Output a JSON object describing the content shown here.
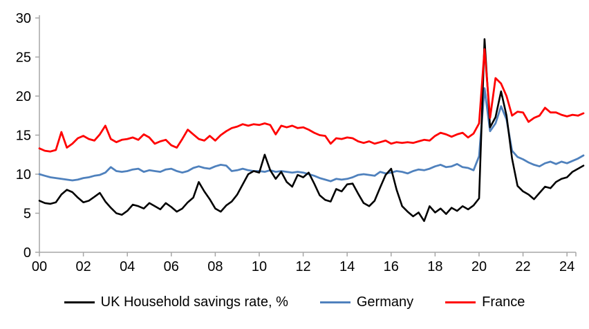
{
  "page": {
    "background": "#FFFFFF"
  },
  "chart_data": {
    "type": "line",
    "title": "",
    "xlabel": "",
    "ylabel": "",
    "grid": false,
    "legend_position": "bottom",
    "axis_color": "#A6A6A6",
    "text_color": "#000000",
    "xlim": [
      2000,
      2024.75
    ],
    "ylim": [
      0,
      30
    ],
    "x_step": 0.25,
    "x_unit": "quarterly, year 2000 Q1 to 2024 Q4",
    "yticks": [
      0,
      5,
      10,
      15,
      20,
      25,
      30
    ],
    "xticks": [
      {
        "year": 2000,
        "label": "00"
      },
      {
        "year": 2002,
        "label": "02"
      },
      {
        "year": 2004,
        "label": "04"
      },
      {
        "year": 2006,
        "label": "06"
      },
      {
        "year": 2008,
        "label": "08"
      },
      {
        "year": 2010,
        "label": "10"
      },
      {
        "year": 2012,
        "label": "12"
      },
      {
        "year": 2014,
        "label": "14"
      },
      {
        "year": 2016,
        "label": "16"
      },
      {
        "year": 2018,
        "label": "18"
      },
      {
        "year": 2020,
        "label": "20"
      },
      {
        "year": 2022,
        "label": "22"
      },
      {
        "year": 2024,
        "label": "24"
      }
    ],
    "draw_order": [
      1,
      0,
      2
    ],
    "series": [
      {
        "name": "UK Household savings rate, %",
        "color": "#000000",
        "width": 2.6,
        "values": [
          6.6,
          6.3,
          6.2,
          6.4,
          7.4,
          8.0,
          7.7,
          7.0,
          6.4,
          6.6,
          7.1,
          7.6,
          6.5,
          5.7,
          5.0,
          4.8,
          5.3,
          6.1,
          5.9,
          5.6,
          6.3,
          5.9,
          5.5,
          6.3,
          5.8,
          5.2,
          5.6,
          6.4,
          7.0,
          9.0,
          7.8,
          6.8,
          5.6,
          5.2,
          6.0,
          6.5,
          7.4,
          8.7,
          10.0,
          10.4,
          10.2,
          12.5,
          10.5,
          9.4,
          10.3,
          9.0,
          8.4,
          9.9,
          9.6,
          10.2,
          8.8,
          7.3,
          6.7,
          6.5,
          8.1,
          7.8,
          8.7,
          8.8,
          7.5,
          6.3,
          5.9,
          6.6,
          8.3,
          9.9,
          10.7,
          8.0,
          5.9,
          5.2,
          4.6,
          5.1,
          4.0,
          5.9,
          5.1,
          5.6,
          4.9,
          5.7,
          5.3,
          5.9,
          5.5,
          6.0,
          6.9,
          27.3,
          16.0,
          17.3,
          20.6,
          17.5,
          12.0,
          8.5,
          7.8,
          7.4,
          6.8,
          7.6,
          8.4,
          8.2,
          9.0,
          9.4,
          9.6,
          10.3,
          10.7,
          11.1
        ]
      },
      {
        "name": "Germany",
        "color": "#4F81BD",
        "width": 2.8,
        "values": [
          10.0,
          9.8,
          9.6,
          9.5,
          9.4,
          9.3,
          9.2,
          9.3,
          9.5,
          9.6,
          9.8,
          9.9,
          10.2,
          10.9,
          10.4,
          10.3,
          10.4,
          10.6,
          10.7,
          10.3,
          10.5,
          10.4,
          10.3,
          10.6,
          10.7,
          10.4,
          10.2,
          10.4,
          10.8,
          11.0,
          10.8,
          10.7,
          11.0,
          11.2,
          11.1,
          10.4,
          10.5,
          10.7,
          10.5,
          10.4,
          10.4,
          10.3,
          10.5,
          10.3,
          10.4,
          10.3,
          10.2,
          10.3,
          10.2,
          10.0,
          9.8,
          9.5,
          9.3,
          9.1,
          9.4,
          9.3,
          9.4,
          9.6,
          9.9,
          10.0,
          9.9,
          9.8,
          10.3,
          10.1,
          10.2,
          10.4,
          10.3,
          10.1,
          10.4,
          10.6,
          10.5,
          10.7,
          11.0,
          11.2,
          10.9,
          11.0,
          11.3,
          10.9,
          10.8,
          10.5,
          12.3,
          21.0,
          15.5,
          16.5,
          18.7,
          17.0,
          13.0,
          12.2,
          11.9,
          11.5,
          11.2,
          11.0,
          11.4,
          11.6,
          11.3,
          11.6,
          11.4,
          11.7,
          12.0,
          12.4
        ]
      },
      {
        "name": "France",
        "color": "#FF0000",
        "width": 2.8,
        "values": [
          13.3,
          13.0,
          12.9,
          13.1,
          15.4,
          13.4,
          13.9,
          14.6,
          14.9,
          14.5,
          14.3,
          15.1,
          16.2,
          14.5,
          14.1,
          14.4,
          14.5,
          14.7,
          14.4,
          15.1,
          14.7,
          13.9,
          14.2,
          14.4,
          13.7,
          13.4,
          14.5,
          15.7,
          15.1,
          14.5,
          14.3,
          14.9,
          14.3,
          15.0,
          15.5,
          15.9,
          16.1,
          16.4,
          16.2,
          16.4,
          16.3,
          16.5,
          16.3,
          15.1,
          16.2,
          16.0,
          16.2,
          15.9,
          16.0,
          15.7,
          15.3,
          15.0,
          14.9,
          13.9,
          14.6,
          14.5,
          14.7,
          14.6,
          14.2,
          14.0,
          14.2,
          13.9,
          14.1,
          14.3,
          13.9,
          14.1,
          14.0,
          14.1,
          14.0,
          14.2,
          14.4,
          14.3,
          14.9,
          15.3,
          15.1,
          14.8,
          15.1,
          15.3,
          14.7,
          15.2,
          16.5,
          26.0,
          17.2,
          22.3,
          21.6,
          20.0,
          17.5,
          18.0,
          17.9,
          16.7,
          17.2,
          17.5,
          18.5,
          17.9,
          17.9,
          17.6,
          17.4,
          17.6,
          17.5,
          17.8
        ]
      }
    ]
  }
}
